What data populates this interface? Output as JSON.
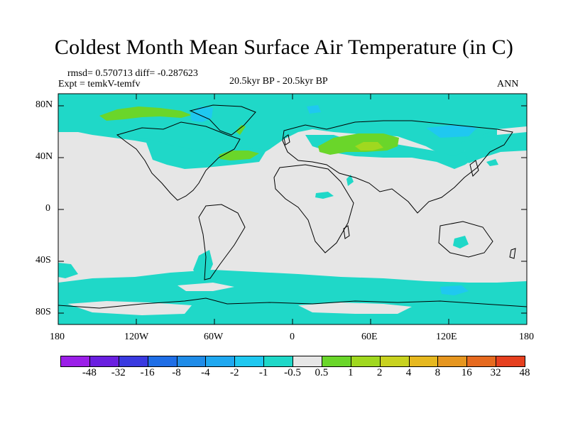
{
  "title": "Coldest Month Mean Surface Air Temperature (in C)",
  "stats": "rmsd= 0.570713 diff= -0.287623",
  "expt": "Expt = temkV-temfv",
  "period": "20.5kyr BP - 20.5kyr BP",
  "season": "ANN",
  "axes": {
    "lat_labels": [
      "80N",
      "40N",
      "0",
      "40S",
      "80S"
    ],
    "lon_labels": [
      "180",
      "120W",
      "60W",
      "0",
      "60E",
      "120E",
      "180"
    ]
  },
  "legend": {
    "labels": [
      "-48",
      "-32",
      "-16",
      "-8",
      "-4",
      "-2",
      "-1",
      "-0.5",
      "0.5",
      "1",
      "2",
      "4",
      "8",
      "16",
      "32",
      "48"
    ],
    "colors": [
      "#9b1fe8",
      "#6a1fe0",
      "#3a3ae0",
      "#1f6ee6",
      "#1f8ce8",
      "#1fa8f0",
      "#1fc8f0",
      "#1fd8c8",
      "#e6e6e6",
      "#6ad62a",
      "#a0d81f",
      "#c8d21f",
      "#e6b81f",
      "#e6961f",
      "#e66a1f",
      "#e6401f"
    ]
  }
}
